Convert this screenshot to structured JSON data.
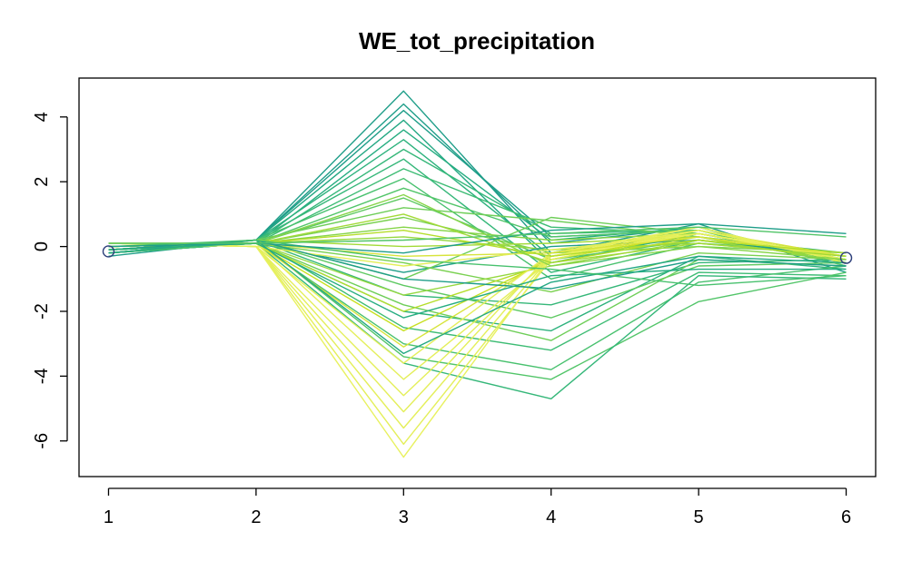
{
  "chart_data": {
    "type": "line",
    "title": "WE_tot_precipitation",
    "xlabel": "",
    "ylabel": "",
    "x": [
      1,
      2,
      3,
      4,
      5,
      6
    ],
    "x_tick_labels": [
      "1",
      "2",
      "3",
      "4",
      "5",
      "6"
    ],
    "y_tick_labels": [
      "4",
      "2",
      "0",
      "-2",
      "-4",
      "-6"
    ],
    "y_ticks": [
      4,
      2,
      0,
      -2,
      -4,
      -6
    ],
    "xlim": [
      0.8,
      6.2
    ],
    "ylim": [
      -7.1,
      5.2
    ],
    "grid": false,
    "legend": "none",
    "series_color_ramp": [
      "#1f9e89",
      "#35b779",
      "#6ece58",
      "#b5de2b",
      "#e4ef5a"
    ],
    "series": [
      {
        "values": [
          -0.3,
          0.2,
          4.8,
          -0.2,
          0.7,
          -0.8
        ],
        "color": "#1f9e89"
      },
      {
        "values": [
          -0.2,
          0.2,
          4.4,
          0.1,
          0.6,
          -0.5
        ],
        "color": "#1f9e89"
      },
      {
        "values": [
          -0.2,
          0.2,
          4.2,
          0.3,
          0.5,
          -0.4
        ],
        "color": "#1f9e89"
      },
      {
        "values": [
          -0.1,
          0.2,
          3.9,
          -0.5,
          0.4,
          -0.3
        ],
        "color": "#23a883"
      },
      {
        "values": [
          -0.2,
          0.1,
          3.6,
          0.2,
          0.6,
          -0.6
        ],
        "color": "#26ad81"
      },
      {
        "values": [
          -0.1,
          0.2,
          3.3,
          -0.3,
          0.3,
          -0.2
        ],
        "color": "#2db27d"
      },
      {
        "values": [
          -0.1,
          0.1,
          3.0,
          0.4,
          0.5,
          -0.5
        ],
        "color": "#35b779"
      },
      {
        "values": [
          -0.2,
          0.2,
          2.7,
          -0.8,
          0.2,
          -0.3
        ],
        "color": "#35b779"
      },
      {
        "values": [
          -0.1,
          0.1,
          2.4,
          0.6,
          0.4,
          -0.4
        ],
        "color": "#3dbc74"
      },
      {
        "values": [
          -0.1,
          0.2,
          2.1,
          -1.0,
          0.1,
          -0.2
        ],
        "color": "#48c16e"
      },
      {
        "values": [
          0.0,
          0.1,
          1.8,
          0.3,
          0.5,
          -0.6
        ],
        "color": "#52c569"
      },
      {
        "values": [
          -0.2,
          0.1,
          1.5,
          -0.4,
          0.2,
          -0.3
        ],
        "color": "#5ec962"
      },
      {
        "values": [
          -0.1,
          0.2,
          1.2,
          0.8,
          0.3,
          -0.5
        ],
        "color": "#6ece58"
      },
      {
        "values": [
          0.0,
          0.1,
          0.9,
          -0.2,
          0.0,
          -0.2
        ],
        "color": "#7ad151"
      },
      {
        "values": [
          -0.1,
          0.1,
          0.6,
          0.2,
          0.4,
          -0.4
        ],
        "color": "#86d549"
      },
      {
        "values": [
          0.0,
          0.1,
          0.3,
          -0.1,
          0.1,
          -0.3
        ],
        "color": "#95d840"
      },
      {
        "values": [
          -0.1,
          0.2,
          0.0,
          0.1,
          0.3,
          -0.5
        ],
        "color": "#a2da37"
      },
      {
        "values": [
          -0.2,
          0.1,
          -0.8,
          0.0,
          0.2,
          -0.3
        ],
        "color": "#1f9e89"
      },
      {
        "values": [
          -0.1,
          0.2,
          -1.5,
          -1.8,
          -0.5,
          -0.4
        ],
        "color": "#35b779"
      },
      {
        "values": [
          -0.2,
          0.1,
          -2.0,
          -2.6,
          -0.3,
          -0.7
        ],
        "color": "#2db27d"
      },
      {
        "values": [
          -0.1,
          0.2,
          -2.5,
          -3.2,
          -0.8,
          -0.9
        ],
        "color": "#3dbc74"
      },
      {
        "values": [
          -0.2,
          0.1,
          -3.0,
          -3.8,
          -1.1,
          -0.6
        ],
        "color": "#48c16e"
      },
      {
        "values": [
          -0.1,
          0.2,
          -3.4,
          -4.1,
          -1.7,
          -0.8
        ],
        "color": "#52c569"
      },
      {
        "values": [
          -0.1,
          0.1,
          -3.6,
          -4.7,
          -0.9,
          -1.0
        ],
        "color": "#35b779"
      },
      {
        "values": [
          -0.2,
          0.2,
          -1.2,
          -2.2,
          -0.6,
          -0.5
        ],
        "color": "#5ec962"
      },
      {
        "values": [
          -0.1,
          0.1,
          -1.8,
          -2.9,
          -0.4,
          -0.6
        ],
        "color": "#6ece58"
      },
      {
        "values": [
          0.0,
          0.1,
          -0.5,
          -1.4,
          -0.2,
          -0.4
        ],
        "color": "#7ad151"
      },
      {
        "values": [
          -0.1,
          0.2,
          -1.0,
          0.9,
          0.4,
          -0.3
        ],
        "color": "#6ece58"
      },
      {
        "values": [
          -0.1,
          0.1,
          -1.5,
          -0.6,
          0.2,
          -0.4
        ],
        "color": "#95d840"
      },
      {
        "values": [
          0.0,
          0.1,
          -2.0,
          -0.5,
          0.3,
          -0.3
        ],
        "color": "#b5de2b"
      },
      {
        "values": [
          0.0,
          0.1,
          -2.6,
          -0.4,
          0.4,
          -0.4
        ],
        "color": "#c8e020"
      },
      {
        "values": [
          0.1,
          0.1,
          -3.1,
          -0.3,
          0.5,
          -0.3
        ],
        "color": "#d7e43b"
      },
      {
        "values": [
          0.1,
          0.0,
          -3.6,
          -0.2,
          0.6,
          -0.5
        ],
        "color": "#e4ef5a"
      },
      {
        "values": [
          0.1,
          0.1,
          -4.1,
          -0.4,
          0.5,
          -0.4
        ],
        "color": "#e4ef5a"
      },
      {
        "values": [
          0.1,
          0.0,
          -4.6,
          -0.3,
          0.4,
          -0.3
        ],
        "color": "#e4ef5a"
      },
      {
        "values": [
          0.1,
          0.0,
          -5.1,
          -0.2,
          0.5,
          -0.4
        ],
        "color": "#e4ef5a"
      },
      {
        "values": [
          0.1,
          0.0,
          -5.6,
          -0.3,
          0.6,
          -0.5
        ],
        "color": "#e4ef5a"
      },
      {
        "values": [
          0.1,
          0.0,
          -6.1,
          -0.4,
          0.5,
          -0.4
        ],
        "color": "#e4ef5a"
      },
      {
        "values": [
          0.1,
          0.0,
          -6.5,
          -0.3,
          0.4,
          -0.3
        ],
        "color": "#e8f15f"
      },
      {
        "values": [
          0.1,
          0.1,
          -0.3,
          -0.2,
          0.3,
          -0.3
        ],
        "color": "#d7e43b"
      },
      {
        "values": [
          0.1,
          0.0,
          -0.6,
          -0.1,
          0.4,
          -0.4
        ],
        "color": "#e4ef5a"
      },
      {
        "values": [
          0.0,
          0.1,
          0.5,
          -0.3,
          0.2,
          -0.2
        ],
        "color": "#b5de2b"
      },
      {
        "values": [
          0.0,
          0.1,
          1.0,
          -0.5,
          0.1,
          -0.3
        ],
        "color": "#a2da37"
      },
      {
        "values": [
          -0.1,
          0.1,
          1.6,
          -0.6,
          0.0,
          -0.4
        ],
        "color": "#86d549"
      },
      {
        "values": [
          -0.1,
          0.2,
          -1.0,
          -1.3,
          -0.4,
          -0.6
        ],
        "color": "#1f9e89"
      },
      {
        "values": [
          -0.2,
          0.2,
          -3.3,
          -1.1,
          -0.3,
          -0.5
        ],
        "color": "#23a883"
      },
      {
        "values": [
          -0.1,
          0.1,
          -2.2,
          -0.9,
          -0.7,
          -0.7
        ],
        "color": "#26ad81"
      },
      {
        "values": [
          0.0,
          0.2,
          -0.4,
          -0.7,
          -1.2,
          -0.9
        ],
        "color": "#48c16e"
      },
      {
        "values": [
          0.0,
          0.1,
          -0.2,
          0.5,
          0.7,
          0.4
        ],
        "color": "#1f9e89"
      },
      {
        "values": [
          0.1,
          0.1,
          0.2,
          0.4,
          0.6,
          0.3
        ],
        "color": "#52c569"
      }
    ],
    "markers": [
      {
        "x": 1,
        "y": -0.15,
        "shape": "circle"
      },
      {
        "x": 6,
        "y": -0.35,
        "shape": "circle"
      }
    ]
  }
}
